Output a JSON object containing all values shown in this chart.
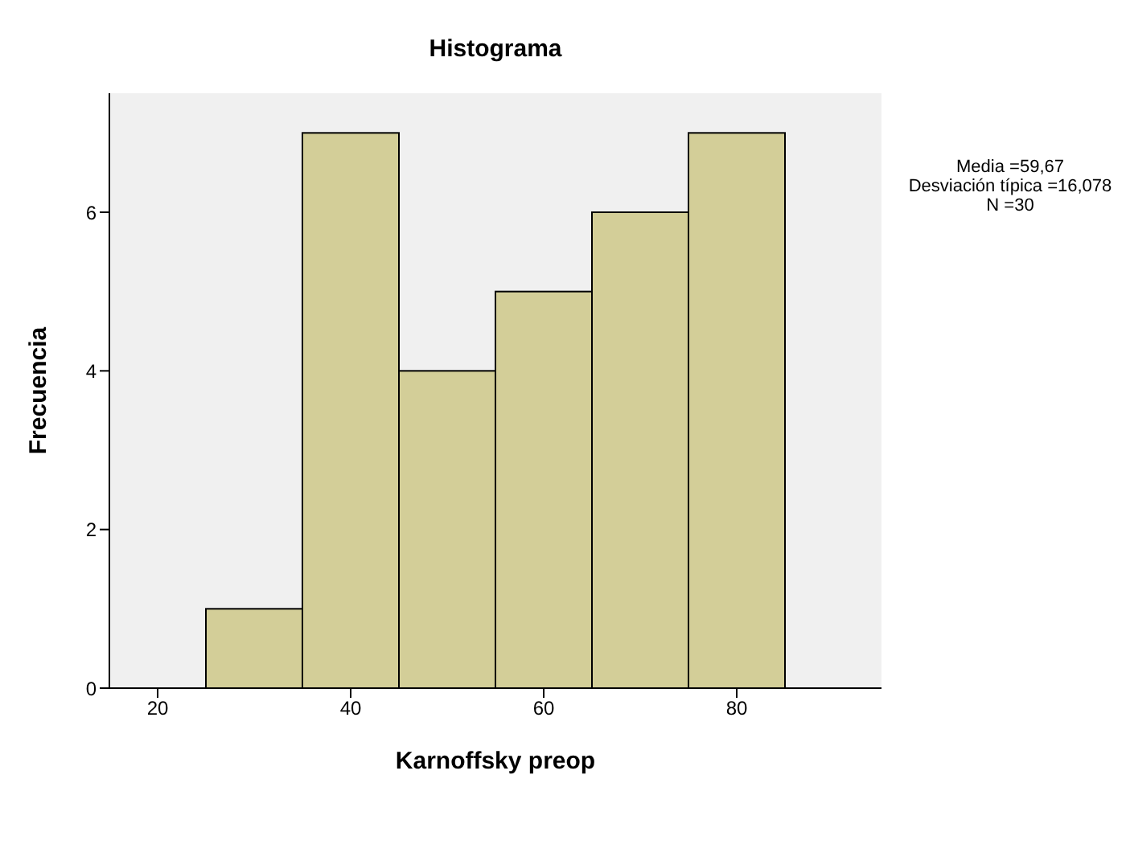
{
  "chart_data": {
    "type": "histogram",
    "title": "Histograma",
    "xlabel": "Karnoffsky preop",
    "ylabel": "Frecuencia",
    "bins": [
      25,
      35,
      45,
      55,
      65,
      75,
      85
    ],
    "values": [
      1,
      7,
      4,
      5,
      6,
      7
    ],
    "color": "#d3ce98",
    "xlim": [
      15,
      95
    ],
    "xticks": [
      20,
      40,
      60,
      80
    ],
    "ylim": [
      0,
      7.5
    ],
    "yticks": [
      0,
      2,
      4,
      6
    ],
    "grid": false,
    "annotations": [
      "Media =59,67",
      "Desviación típica =16,078",
      "N =30"
    ]
  }
}
